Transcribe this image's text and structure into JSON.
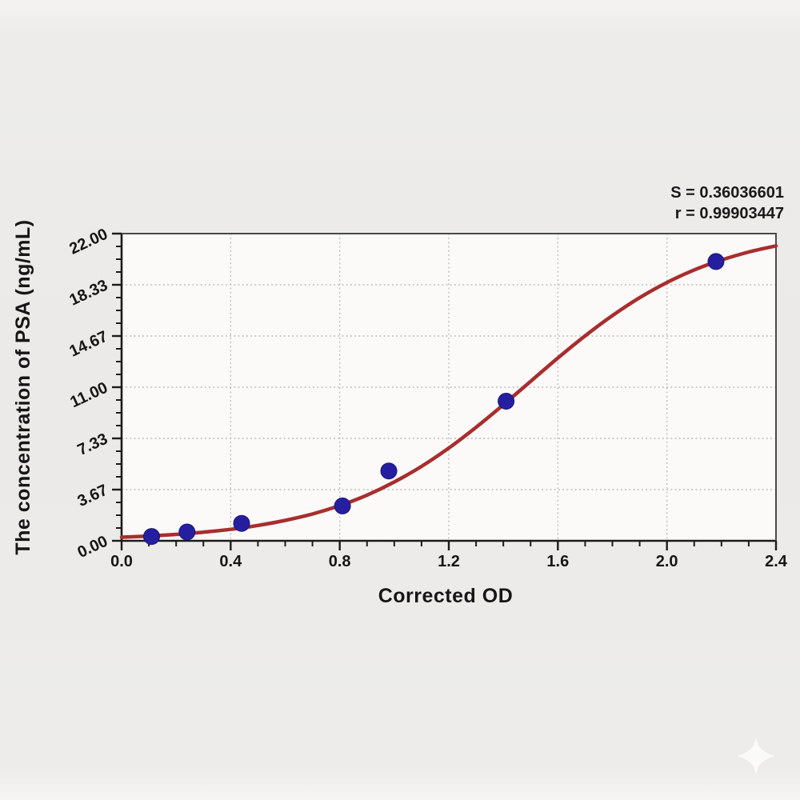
{
  "chart_data": {
    "type": "scatter",
    "subtype": "standard-curve-with-sigmoid-fit",
    "title": "",
    "xlabel": "Corrected OD",
    "ylabel": "The concentration of PSA (ng/mL)",
    "xlim": [
      0.0,
      2.4
    ],
    "ylim": [
      0.0,
      22.0
    ],
    "x_tick_labels": [
      "0.0",
      "0.4",
      "0.8",
      "1.2",
      "1.6",
      "2.0",
      "2.4"
    ],
    "y_tick_labels": [
      "0.00",
      "3.67",
      "7.33",
      "11.00",
      "14.67",
      "18.33",
      "22.00"
    ],
    "minor_ticks_per_major_interval": 3,
    "grid": "dotted lines at interior major ticks, both axes",
    "legend_position": "none",
    "annotations": {
      "S": "S = 0.36036601",
      "r": "r = 0.99903447"
    },
    "points_od_conc": [
      [
        0.11,
        0.31
      ],
      [
        0.24,
        0.63
      ],
      [
        0.44,
        1.25
      ],
      [
        0.81,
        2.5
      ],
      [
        0.98,
        5.0
      ],
      [
        1.41,
        10.0
      ],
      [
        2.18,
        20.0
      ]
    ],
    "fit_curve_od_conc": [
      [
        0.0,
        0.26
      ],
      [
        0.1,
        0.34
      ],
      [
        0.2,
        0.46
      ],
      [
        0.3,
        0.62
      ],
      [
        0.4,
        0.82
      ],
      [
        0.5,
        1.1
      ],
      [
        0.6,
        1.46
      ],
      [
        0.7,
        1.92
      ],
      [
        0.8,
        2.52
      ],
      [
        0.9,
        3.27
      ],
      [
        1.0,
        4.21
      ],
      [
        1.1,
        5.33
      ],
      [
        1.2,
        6.64
      ],
      [
        1.3,
        8.13
      ],
      [
        1.4,
        9.74
      ],
      [
        1.5,
        11.42
      ],
      [
        1.6,
        13.09
      ],
      [
        1.7,
        14.68
      ],
      [
        1.8,
        16.13
      ],
      [
        1.9,
        17.41
      ],
      [
        2.0,
        18.5
      ],
      [
        2.1,
        19.4
      ],
      [
        2.2,
        20.11
      ],
      [
        2.3,
        20.68
      ],
      [
        2.4,
        21.12
      ]
    ],
    "colors": {
      "curve": "#a82e2e",
      "points": "#251fa0",
      "point_edge": "#1a1478",
      "axis": "#1b1b1b",
      "box": "#4a4a4a",
      "grid": "#b8b8b8",
      "plot_background": "#fbfaf8",
      "page_background": "#ebeae8",
      "text": "#161616"
    }
  },
  "watermark": {
    "icon": "sparkle-star"
  }
}
